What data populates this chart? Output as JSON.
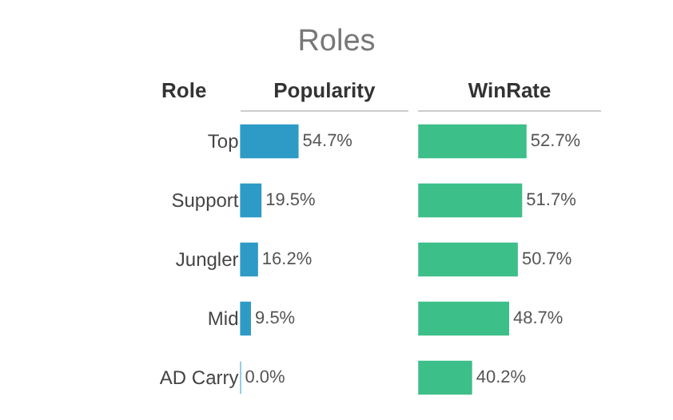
{
  "chart_data": [
    {
      "type": "bar",
      "orientation": "horizontal",
      "title": "Roles",
      "ylabel": "Role",
      "xlabel": "Popularity",
      "categories": [
        "Top",
        "Support",
        "Jungler",
        "Mid",
        "AD Carry"
      ],
      "values": [
        54.7,
        19.5,
        16.2,
        9.5,
        0.0
      ],
      "value_labels": [
        "54.7%",
        "19.5%",
        "16.2%",
        "9.5%",
        "0.0%"
      ],
      "color": "#2e9bc6",
      "xlim": [
        0,
        160
      ]
    },
    {
      "type": "bar",
      "orientation": "horizontal",
      "xlabel": "WinRate",
      "values": [
        52.7,
        51.7,
        50.7,
        48.7,
        40.2
      ],
      "value_labels": [
        "52.7%",
        "51.7%",
        "50.7%",
        "48.7%",
        "40.2%"
      ],
      "color": "#3dbf8a",
      "xlim": [
        28,
        70
      ]
    }
  ]
}
